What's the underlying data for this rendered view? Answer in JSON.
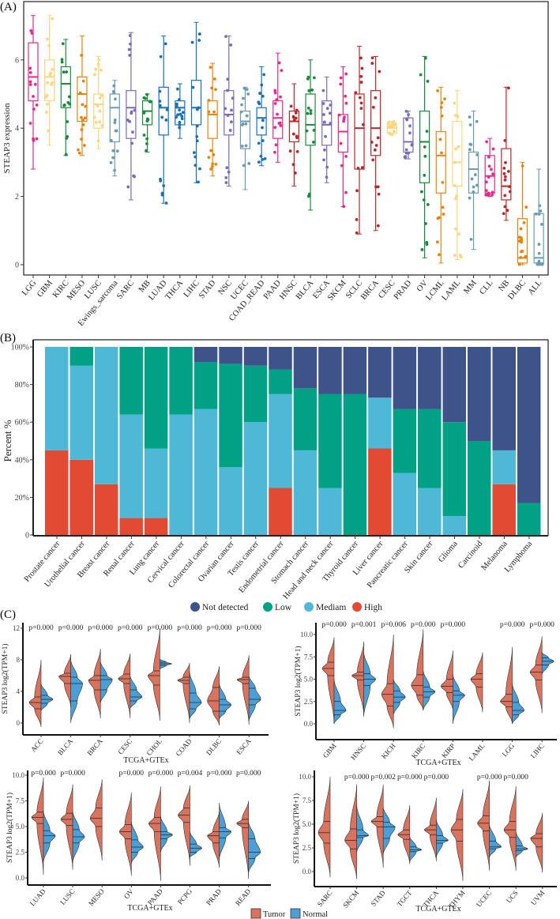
{
  "chart_data": [
    {
      "panel": "(A)",
      "type": "box",
      "ylabel": "STEAP3 expression",
      "ylim": [
        -0.25,
        7.5
      ],
      "yticks": [
        "0",
        "2",
        "4",
        "6"
      ],
      "grid": false,
      "categories": [
        "LGG",
        "GBM",
        "KIRC",
        "MESO",
        "LUSC",
        "Ewings_sarcoma",
        "SARC",
        "MB",
        "LUAD",
        "THCA",
        "LIHC",
        "STAD",
        "NSC",
        "UCEC",
        "COAD_READ",
        "PAAD",
        "HNSC",
        "BLCA",
        "ESCA",
        "SKCM",
        "SCLC",
        "BRCA",
        "CESC",
        "PRAD",
        "OV",
        "LCML",
        "LAML",
        "MM",
        "CLL",
        "NB",
        "DLBC",
        "ALL"
      ],
      "colors": [
        "#e7298a",
        "#fdd67d",
        "#1b8a3c",
        "#e6830f",
        "#fdd67d",
        "#6a9bb0",
        "#7b6bb8",
        "#1b8a3c",
        "#1a6fb9",
        "#1a6fb9",
        "#1a6fb9",
        "#e6830f",
        "#7b6bb8",
        "#6a9bb0",
        "#1a6fb9",
        "#e7298a",
        "#b8282a",
        "#1b8a3c",
        "#7b6bb8",
        "#e7298a",
        "#b8282a",
        "#b8282a",
        "#fdd67d",
        "#7b6bb8",
        "#1b8a3c",
        "#e6830f",
        "#fdd67d",
        "#6a9bb0",
        "#e7298a",
        "#b8282a",
        "#e6830f",
        "#6a9bb0"
      ],
      "boxes": [
        [
          2.8,
          4.8,
          5.5,
          6.5,
          7.3
        ],
        [
          3.5,
          4.8,
          5.5,
          6.0,
          7.3
        ],
        [
          3.2,
          4.6,
          5.3,
          5.8,
          6.6
        ],
        [
          3.2,
          4.2,
          5.0,
          5.5,
          6.7
        ],
        [
          3.4,
          4.0,
          4.7,
          5.0,
          6.1
        ],
        [
          2.6,
          3.6,
          4.6,
          5.0,
          5.4
        ],
        [
          1.9,
          3.7,
          4.6,
          5.1,
          6.8
        ],
        [
          3.3,
          4.1,
          4.5,
          4.8,
          5.0
        ],
        [
          1.8,
          3.8,
          4.6,
          5.2,
          6.7
        ],
        [
          3.7,
          4.1,
          4.6,
          4.8,
          5.3
        ],
        [
          2.4,
          4.1,
          4.6,
          5.4,
          7.1
        ],
        [
          2.6,
          3.7,
          4.4,
          4.8,
          5.9
        ],
        [
          2.3,
          3.8,
          4.4,
          5.1,
          6.7
        ],
        [
          2.2,
          3.4,
          4.2,
          4.5,
          5.2
        ],
        [
          2.9,
          3.8,
          4.3,
          4.6,
          5.8
        ],
        [
          3.0,
          3.7,
          4.3,
          4.8,
          6.2
        ],
        [
          2.3,
          3.6,
          4.2,
          4.5,
          5.3
        ],
        [
          1.6,
          3.5,
          4.1,
          5.0,
          6.0
        ],
        [
          2.4,
          3.5,
          4.1,
          4.8,
          5.5
        ],
        [
          1.7,
          3.3,
          3.9,
          4.4,
          5.8
        ],
        [
          0.9,
          2.8,
          4.0,
          5.0,
          6.4
        ],
        [
          1.0,
          3.2,
          4.0,
          5.1,
          6.1
        ],
        [
          3.8,
          3.85,
          4.0,
          4.1,
          4.2
        ],
        [
          3.1,
          3.3,
          3.6,
          4.3,
          4.5
        ],
        [
          0.2,
          2.4,
          3.6,
          4.5,
          6.1
        ],
        [
          0.05,
          2.1,
          3.2,
          3.9,
          5.2
        ],
        [
          0.15,
          2.3,
          3.0,
          4.2,
          5.1
        ],
        [
          0.45,
          2.1,
          2.8,
          3.3,
          4.5
        ],
        [
          2.0,
          2.1,
          2.6,
          3.2,
          3.7
        ],
        [
          1.3,
          1.9,
          2.3,
          3.4,
          5.2
        ],
        [
          0.0,
          0.05,
          0.2,
          1.35,
          3.0
        ],
        [
          0.0,
          0.05,
          0.2,
          1.5,
          2.8
        ]
      ],
      "box_fields": [
        "min",
        "q1",
        "median",
        "q3",
        "max"
      ]
    },
    {
      "panel": "(B)",
      "type": "stacked_bar",
      "ylabel": "Percent %",
      "ylim": [
        0,
        100
      ],
      "yticks": [
        "0",
        "20%",
        "40%",
        "60%",
        "80%",
        "100%"
      ],
      "categories": [
        "Prostate cancer",
        "Urothelial cancer",
        "Breast cancer",
        "Renal cancer",
        "Lung cancer",
        "Cervical cancer",
        "Colorectal cancer",
        "Ovarian cancer",
        "Testis cancer",
        "Endometrial cancer",
        "Stomach cancer",
        "Head and neck cancer",
        "Thyroid cancer",
        "Liver cancer",
        "Pancreatic cancer",
        "Skin cancer",
        "Glioma",
        "Carcinoid",
        "Melanoma",
        "Lymphoma"
      ],
      "legend_position": "bottom",
      "series": [
        {
          "name": "High",
          "color": "#e34a33",
          "values": [
            45,
            40,
            27,
            9,
            9,
            0,
            0,
            0,
            0,
            25,
            0,
            0,
            0,
            46,
            0,
            0,
            0,
            0,
            27,
            0
          ]
        },
        {
          "name": "Mediam",
          "color": "#4eb8d6",
          "values": [
            55,
            50,
            73,
            55,
            37,
            64,
            67,
            36,
            60,
            50,
            45,
            25,
            0,
            27,
            33,
            25,
            10,
            0,
            18,
            0
          ]
        },
        {
          "name": "Low",
          "color": "#00a184",
          "values": [
            0,
            10,
            0,
            36,
            54,
            36,
            25,
            55,
            30,
            13,
            33,
            50,
            75,
            0,
            34,
            42,
            50,
            50,
            0,
            17
          ]
        },
        {
          "name": "Not detected",
          "color": "#3d5389",
          "values": [
            0,
            0,
            0,
            0,
            0,
            0,
            8,
            9,
            10,
            12,
            22,
            25,
            25,
            27,
            33,
            33,
            40,
            50,
            55,
            83
          ]
        }
      ],
      "legend_order": [
        "Not detected",
        "Low",
        "Mediam",
        "High"
      ]
    },
    {
      "panel": "(C)",
      "type": "split_violin",
      "ylabel": "STEAP3  log2(TPM+1)",
      "xlabel": "TCGA+GTEx",
      "yticks": [
        "0",
        "4",
        "8",
        "12"
      ],
      "categories": [
        "ACC",
        "BLCA",
        "BRCA",
        "CESC",
        "CHOL",
        "COAD",
        "DLBC",
        "ESCA"
      ],
      "pvalues": [
        "p=0.000",
        "p=0.000",
        "p=0.000",
        "p=0.000",
        "p=0.000",
        "p=0.000",
        "p=0.000",
        "p=0.000"
      ],
      "tumor": [
        [
          -0.5,
          1.8,
          2.6,
          3.3,
          8
        ],
        [
          2,
          5,
          5.9,
          6.3,
          8.7
        ],
        [
          0.6,
          4.2,
          5.4,
          6,
          9.4
        ],
        [
          0.6,
          5,
          5.6,
          6.2,
          8.8
        ],
        [
          0.3,
          4.8,
          6,
          6.6,
          12
        ],
        [
          0,
          5,
          5.4,
          5.8,
          7.6
        ],
        [
          -0.3,
          1.5,
          2.8,
          4.5,
          7.2
        ],
        [
          -0.2,
          5,
          5.5,
          5.8,
          8.6
        ]
      ],
      "normal": [
        [
          1.5,
          2.5,
          3,
          3.5,
          5
        ],
        [
          0,
          2.8,
          5,
          5.8,
          8
        ],
        [
          2.5,
          4.2,
          5.5,
          6,
          7.8
        ],
        [
          1.8,
          2.8,
          3.3,
          4.2,
          6
        ],
        [
          6.8,
          7.3,
          7.5,
          7.7,
          8.1
        ],
        [
          0.5,
          1.8,
          2.6,
          3.8,
          6.5
        ],
        [
          0.5,
          1.5,
          2.3,
          3,
          5
        ],
        [
          0.2,
          2.3,
          3,
          4.4,
          6
        ]
      ]
    },
    {
      "panel": "(C)",
      "type": "split_violin",
      "ylabel": "STEAP3  log2(TPM+1)",
      "xlabel": "TCGA+GTEx",
      "yticks": [
        "0.0",
        "2.5",
        "5.0",
        "7.5",
        "10.0"
      ],
      "categories": [
        "GBM",
        "HNSC",
        "KICH",
        "KIRC",
        "KIRP",
        "LAML",
        "LGG",
        "LIHC"
      ],
      "pvalues": [
        "p=0.000",
        "p=0.001",
        "p=0.006",
        "p=0.000",
        "p=0.000",
        "",
        "p=0.000",
        "p=0.000"
      ],
      "tumor": [
        [
          0,
          5.4,
          6.2,
          6.9,
          9.7
        ],
        [
          1,
          4.9,
          5.4,
          5.8,
          9.2
        ],
        [
          -0.5,
          2,
          3.3,
          4.5,
          10
        ],
        [
          1.5,
          3.2,
          4.3,
          5.5,
          10.6
        ],
        [
          1.5,
          3.5,
          4.2,
          5,
          8.2
        ],
        [
          1.3,
          4.1,
          5,
          5.6,
          8
        ],
        [
          0,
          1.9,
          2.5,
          3.3,
          8.6
        ],
        [
          1.2,
          4.9,
          5.8,
          6.6,
          9.8
        ]
      ],
      "normal": [
        [
          0,
          1,
          1.5,
          2.5,
          5
        ],
        [
          0.8,
          4.3,
          5,
          5.6,
          8
        ],
        [
          1,
          2.4,
          3,
          3.7,
          5
        ],
        [
          1.5,
          3,
          3.6,
          4.1,
          6
        ],
        [
          0,
          2.5,
          3.2,
          3.7,
          5.5
        ],
        null,
        [
          0,
          1,
          1.5,
          2.4,
          4.5
        ],
        [
          5.5,
          6.6,
          7,
          7.4,
          8
        ]
      ]
    },
    {
      "panel": "(C)",
      "type": "split_violin",
      "ylabel": "STEAP3  log2(TPM+1)",
      "xlabel": "TCGA+GTEx",
      "yticks": [
        "0.0",
        "2.5",
        "5.0",
        "7.5",
        "10.0"
      ],
      "categories": [
        "LUAD",
        "LUSC",
        "MESO",
        "OV",
        "PAAD",
        "PCPG",
        "PRAD",
        "READ"
      ],
      "pvalues": [
        "p=0.000",
        "p=0.000",
        "",
        "p=0.000",
        "p=0.000",
        "p=0.004",
        "p=0.000",
        "p=0.000"
      ],
      "tumor": [
        [
          0.3,
          5.3,
          5.9,
          6.4,
          9.8
        ],
        [
          0.8,
          5.1,
          5.7,
          6.3,
          9.1
        ],
        [
          1.7,
          5,
          5.8,
          6.8,
          9.6
        ],
        [
          0.2,
          3.8,
          4.5,
          5.2,
          8.3
        ],
        [
          -0.3,
          4.5,
          5.3,
          5.9,
          8.9
        ],
        [
          1.2,
          5.4,
          6.1,
          6.8,
          9
        ],
        [
          1,
          3.4,
          4.1,
          4.5,
          6.5
        ],
        [
          -0.1,
          4.9,
          5.3,
          5.7,
          7.5
        ]
      ],
      "normal": [
        [
          1.5,
          3.4,
          4.1,
          4.6,
          6.5
        ],
        [
          1.5,
          3.4,
          4,
          4.7,
          6.5
        ],
        null,
        [
          1.4,
          2.5,
          3,
          3.7,
          5.5
        ],
        [
          2.5,
          3.8,
          4.2,
          4.5,
          6
        ],
        [
          2,
          2.5,
          2.9,
          3.3,
          4.5
        ],
        [
          1.8,
          3.9,
          4.5,
          4.9,
          7.3
        ],
        [
          0.5,
          1.9,
          2.5,
          3.8,
          5.5
        ]
      ]
    },
    {
      "panel": "(C)",
      "type": "split_violin",
      "ylabel": "STEAP3  log2(TPM+1)",
      "xlabel": "TCGA+GTEx",
      "yticks": [
        "0.0",
        "2.5",
        "5.0",
        "7.5",
        "10.0"
      ],
      "categories": [
        "SARC",
        "SKCM",
        "STAD",
        "TGCT",
        "THCA",
        "THYM",
        "UCEC",
        "UCS",
        "UVM"
      ],
      "pvalues": [
        "",
        "p=0.000",
        "p=0.002",
        "p=0.000",
        "p=0.000",
        "",
        "p=0.000",
        "p=0.000",
        ""
      ],
      "tumor": [
        [
          -0.6,
          3,
          4.1,
          5.3,
          10
        ],
        [
          -0.8,
          2.4,
          3.3,
          4.5,
          9.2
        ],
        [
          0.4,
          4.7,
          5.3,
          5.8,
          9.2
        ],
        [
          0.8,
          3.4,
          3.9,
          4.4,
          7
        ],
        [
          1.1,
          3.9,
          4.4,
          4.9,
          7.8
        ],
        [
          -1,
          3.2,
          4.4,
          5.5,
          8.7
        ],
        [
          0.1,
          4.3,
          5.1,
          5.9,
          9.6
        ],
        [
          0.1,
          3.6,
          4.4,
          5.3,
          9
        ],
        [
          -0.1,
          2.6,
          3.5,
          4,
          6.2
        ]
      ],
      "normal": [
        null,
        [
          2,
          3.6,
          3.8,
          4.4,
          7
        ],
        [
          1.8,
          3.5,
          4.7,
          5.2,
          6.8
        ],
        [
          1,
          2.1,
          2.3,
          2.6,
          3.7
        ],
        [
          1.5,
          3,
          3.3,
          3.8,
          5.5
        ],
        null,
        [
          1.5,
          2.4,
          2.6,
          3.2,
          5
        ],
        [
          1.5,
          2.2,
          2.4,
          2.7,
          4.2
        ],
        null
      ]
    }
  ],
  "violin_legend": [
    {
      "name": "Tumor",
      "color": "#d9735d"
    },
    {
      "name": "Normal",
      "color": "#4c9fd6"
    }
  ]
}
